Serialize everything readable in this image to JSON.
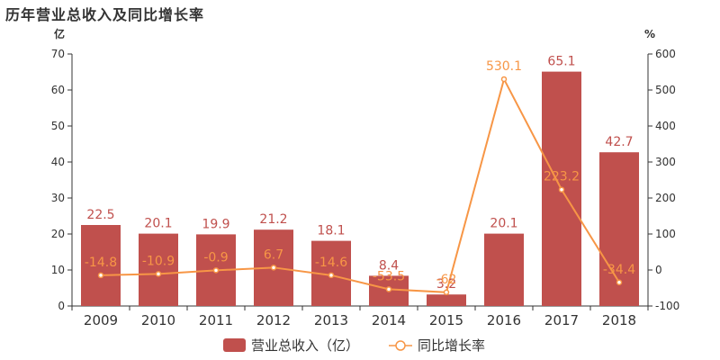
{
  "chart_data": {
    "type": "bar",
    "title": "历年营业总收入及同比增长率",
    "categories": [
      "2009",
      "2010",
      "2011",
      "2012",
      "2013",
      "2014",
      "2015",
      "2016",
      "2017",
      "2018"
    ],
    "series": [
      {
        "name": "营业总收入（亿）",
        "type": "bar",
        "axis": "left",
        "values": [
          22.5,
          20.1,
          19.9,
          21.2,
          18.1,
          8.4,
          3.2,
          20.1,
          65.1,
          42.7
        ],
        "labels": [
          "22.5",
          "20.1",
          "19.9",
          "21.2",
          "18.1",
          "8.4",
          "3.2",
          "20.1",
          "65.1",
          "42.7"
        ],
        "color": "#c0504d"
      },
      {
        "name": "同比增长率",
        "type": "line",
        "axis": "right",
        "values": [
          -14.8,
          -10.9,
          -0.9,
          6.7,
          -14.6,
          -53.5,
          -62,
          530.1,
          223.2,
          -34.4
        ],
        "labels": [
          "-14.8",
          "-10.9",
          "-0.9",
          "6.7",
          "-14.6",
          "-53.5",
          "-62",
          "530.1",
          "223.2",
          "-34.4"
        ],
        "color": "#f79646"
      }
    ],
    "y_left": {
      "unit": "亿",
      "min": 0,
      "max": 70,
      "ticks": [
        0,
        10,
        20,
        30,
        40,
        50,
        60,
        70
      ]
    },
    "y_right": {
      "unit": "%",
      "min": -100,
      "max": 600,
      "ticks": [
        -100,
        0,
        100,
        200,
        300,
        400,
        500,
        600
      ]
    },
    "legend_position": "bottom",
    "grid": false
  }
}
